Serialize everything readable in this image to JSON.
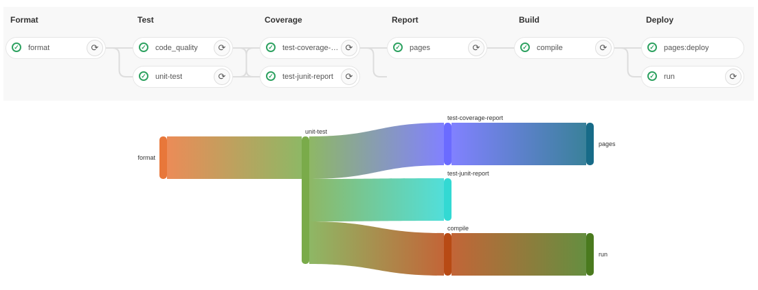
{
  "pipeline": {
    "stages": [
      {
        "title": "Format",
        "jobs": [
          {
            "name": "format",
            "status": "success",
            "retry": true
          }
        ]
      },
      {
        "title": "Test",
        "jobs": [
          {
            "name": "code_quality",
            "status": "success",
            "retry": true
          },
          {
            "name": "unit-test",
            "status": "success",
            "retry": true
          }
        ]
      },
      {
        "title": "Coverage",
        "jobs": [
          {
            "name": "test-coverage-report",
            "status": "success",
            "retry": true
          },
          {
            "name": "test-junit-report",
            "status": "success",
            "retry": true
          }
        ]
      },
      {
        "title": "Report",
        "jobs": [
          {
            "name": "pages",
            "status": "success",
            "retry": true
          }
        ]
      },
      {
        "title": "Build",
        "jobs": [
          {
            "name": "compile",
            "status": "success",
            "retry": true
          }
        ]
      },
      {
        "title": "Deploy",
        "jobs": [
          {
            "name": "pages:deploy",
            "status": "success",
            "retry": false
          },
          {
            "name": "run",
            "status": "success",
            "retry": true
          }
        ]
      }
    ],
    "icons": {
      "status": "check-circle-icon",
      "retry": "retry-icon"
    },
    "colors": {
      "success": "#2da160"
    }
  },
  "chart_data": {
    "type": "sankey",
    "nodes": [
      {
        "name": "format",
        "color": "#e8773a"
      },
      {
        "name": "unit-test",
        "color": "#7aab4a"
      },
      {
        "name": "test-coverage-report",
        "color": "#6b6bff"
      },
      {
        "name": "test-junit-report",
        "color": "#33d9d3"
      },
      {
        "name": "compile",
        "color": "#b84a14"
      },
      {
        "name": "pages",
        "color": "#176b88"
      },
      {
        "name": "run",
        "color": "#4a7a1e"
      }
    ],
    "links": [
      {
        "source": "format",
        "target": "unit-test",
        "value": 1
      },
      {
        "source": "unit-test",
        "target": "test-coverage-report",
        "value": 1
      },
      {
        "source": "unit-test",
        "target": "test-junit-report",
        "value": 1
      },
      {
        "source": "unit-test",
        "target": "compile",
        "value": 1
      },
      {
        "source": "test-coverage-report",
        "target": "pages",
        "value": 1
      },
      {
        "source": "compile",
        "target": "run",
        "value": 1
      }
    ]
  }
}
